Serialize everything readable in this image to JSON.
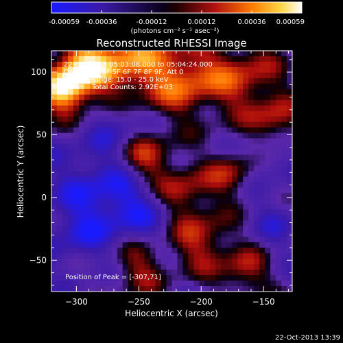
{
  "chart_data": {
    "type": "heatmap",
    "title": "Reconstructed RHESSI Image",
    "xlabel": "Heliocentric X (arcsec)",
    "ylabel": "Heliocentric Y (arcsec)",
    "xlim": [
      -320,
      -127
    ],
    "ylim": [
      -75,
      117
    ],
    "x_ticks": [
      -300,
      -250,
      -200,
      -150
    ],
    "y_ticks": [
      -50,
      0,
      50,
      100
    ],
    "colorbar": {
      "range": [
        -0.00059,
        0.00059
      ],
      "ticks": [
        "-0.00059",
        "-0.00036",
        "-0.00012",
        "0.00012",
        "0.00036",
        "0.00059"
      ],
      "unit_label": "(photons cm⁻² s⁻¹ asec⁻²)",
      "colormap": "rhessi blue-black-red-yellow-white"
    },
    "annotations": {
      "time_range": "22-Oct-2013 05:03:08.000 to 05:04:24.000",
      "detectors": "Detectors: 3F 5F 6F 7F 8F 9F, Att 0",
      "energy": "Energy Range: 15.0 - 25.0 keV",
      "clean": "Clean    Total Counts: 2.92E+03",
      "peak": "Position of Peak = [-307,71]"
    },
    "peak": {
      "x": -307,
      "y": 71
    },
    "footer": "22-Oct-2013 13:39",
    "hot_regions": [
      {
        "x": -310,
        "y": 85,
        "sigma": 14,
        "amp": 1.0
      },
      {
        "x": -295,
        "y": 105,
        "sigma": 16,
        "amp": 0.85
      },
      {
        "x": -260,
        "y": 108,
        "sigma": 20,
        "amp": 0.75
      },
      {
        "x": -215,
        "y": 95,
        "sigma": 22,
        "amp": 0.7
      },
      {
        "x": -165,
        "y": 95,
        "sigma": 22,
        "amp": 0.55
      },
      {
        "x": -140,
        "y": 60,
        "sigma": 14,
        "amp": 0.5
      },
      {
        "x": -245,
        "y": 30,
        "sigma": 16,
        "amp": 0.65
      },
      {
        "x": -215,
        "y": 5,
        "sigma": 16,
        "amp": 0.55
      },
      {
        "x": -175,
        "y": 20,
        "sigma": 14,
        "amp": 0.5
      },
      {
        "x": -200,
        "y": -35,
        "sigma": 18,
        "amp": 0.55
      },
      {
        "x": -250,
        "y": -55,
        "sigma": 16,
        "amp": 0.5
      },
      {
        "x": -165,
        "y": -60,
        "sigma": 14,
        "amp": 0.5
      }
    ],
    "cold_regions": [
      {
        "x": -280,
        "y": 10,
        "sigma": 28,
        "amp": 0.9
      },
      {
        "x": -250,
        "y": -10,
        "sigma": 22,
        "amp": 0.7
      },
      {
        "x": -300,
        "y": -30,
        "sigma": 18,
        "amp": 0.6
      },
      {
        "x": -150,
        "y": 30,
        "sigma": 14,
        "amp": 0.55
      },
      {
        "x": -140,
        "y": -20,
        "sigma": 14,
        "amp": 0.5
      },
      {
        "x": -265,
        "y": 60,
        "sigma": 12,
        "amp": 0.5
      }
    ]
  }
}
